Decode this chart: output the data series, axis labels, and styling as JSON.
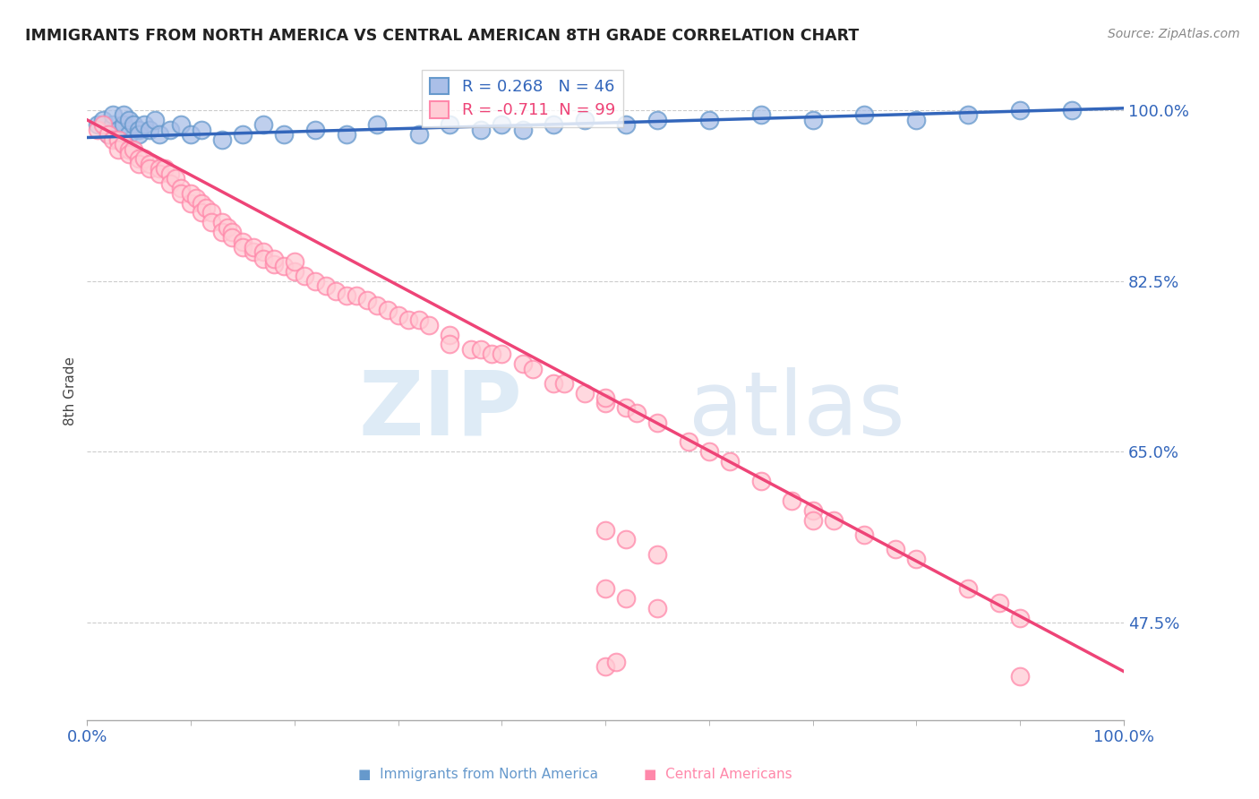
{
  "title": "IMMIGRANTS FROM NORTH AMERICA VS CENTRAL AMERICAN 8TH GRADE CORRELATION CHART",
  "source": "Source: ZipAtlas.com",
  "ylabel": "8th Grade",
  "legend_blue_label": "Immigrants from North America",
  "legend_pink_label": "Central Americans",
  "blue_R": 0.268,
  "blue_N": 46,
  "pink_R": -0.711,
  "pink_N": 99,
  "xlim": [
    0.0,
    1.0
  ],
  "ylim": [
    0.375,
    1.05
  ],
  "yticks": [
    0.475,
    0.65,
    0.825,
    1.0
  ],
  "ytick_labels": [
    "47.5%",
    "65.0%",
    "82.5%",
    "100.0%"
  ],
  "xtick_labels": [
    "0.0%",
    "100.0%"
  ],
  "background_color": "#ffffff",
  "blue_dot_face": "#aabfe8",
  "blue_dot_edge": "#6699cc",
  "pink_dot_face": "#ffccd5",
  "pink_dot_edge": "#ff88aa",
  "blue_line_color": "#3366bb",
  "pink_line_color": "#ee4477",
  "grid_color": "#cccccc",
  "axis_color": "#3366bb",
  "title_color": "#222222",
  "source_color": "#888888",
  "blue_trend_y0": 0.972,
  "blue_trend_y1": 1.002,
  "pink_trend_y0": 0.99,
  "pink_trend_y1": 0.425,
  "blue_points_x": [
    0.01,
    0.015,
    0.02,
    0.025,
    0.025,
    0.03,
    0.03,
    0.035,
    0.035,
    0.04,
    0.04,
    0.045,
    0.05,
    0.05,
    0.055,
    0.06,
    0.065,
    0.07,
    0.08,
    0.09,
    0.1,
    0.11,
    0.13,
    0.15,
    0.17,
    0.19,
    0.22,
    0.25,
    0.28,
    0.32,
    0.35,
    0.38,
    0.4,
    0.42,
    0.45,
    0.48,
    0.52,
    0.55,
    0.6,
    0.65,
    0.7,
    0.75,
    0.8,
    0.85,
    0.9,
    0.95
  ],
  "blue_points_y": [
    0.985,
    0.99,
    0.975,
    0.985,
    0.995,
    0.98,
    0.97,
    0.985,
    0.995,
    0.975,
    0.99,
    0.985,
    0.98,
    0.975,
    0.985,
    0.98,
    0.99,
    0.975,
    0.98,
    0.985,
    0.975,
    0.98,
    0.97,
    0.975,
    0.985,
    0.975,
    0.98,
    0.975,
    0.985,
    0.975,
    0.985,
    0.98,
    0.985,
    0.98,
    0.985,
    0.99,
    0.985,
    0.99,
    0.99,
    0.995,
    0.99,
    0.995,
    0.99,
    0.995,
    1.0,
    1.0
  ],
  "pink_points_x": [
    0.01,
    0.015,
    0.02,
    0.025,
    0.03,
    0.03,
    0.035,
    0.04,
    0.04,
    0.045,
    0.05,
    0.05,
    0.055,
    0.06,
    0.06,
    0.07,
    0.07,
    0.075,
    0.08,
    0.08,
    0.085,
    0.09,
    0.09,
    0.1,
    0.1,
    0.105,
    0.11,
    0.11,
    0.115,
    0.12,
    0.12,
    0.13,
    0.13,
    0.135,
    0.14,
    0.14,
    0.15,
    0.15,
    0.16,
    0.16,
    0.17,
    0.17,
    0.18,
    0.18,
    0.19,
    0.2,
    0.2,
    0.21,
    0.22,
    0.23,
    0.24,
    0.25,
    0.26,
    0.27,
    0.28,
    0.29,
    0.3,
    0.31,
    0.32,
    0.33,
    0.35,
    0.35,
    0.37,
    0.38,
    0.39,
    0.4,
    0.42,
    0.43,
    0.45,
    0.46,
    0.48,
    0.5,
    0.5,
    0.52,
    0.53,
    0.55,
    0.58,
    0.6,
    0.62,
    0.65,
    0.68,
    0.7,
    0.72,
    0.75,
    0.78,
    0.8,
    0.85,
    0.88,
    0.9,
    0.5,
    0.52,
    0.55,
    0.7,
    0.5,
    0.52,
    0.55,
    0.5,
    0.51,
    0.9
  ],
  "pink_points_y": [
    0.98,
    0.985,
    0.975,
    0.97,
    0.97,
    0.96,
    0.965,
    0.96,
    0.955,
    0.96,
    0.95,
    0.945,
    0.95,
    0.945,
    0.94,
    0.94,
    0.935,
    0.94,
    0.935,
    0.925,
    0.93,
    0.92,
    0.915,
    0.905,
    0.915,
    0.91,
    0.905,
    0.895,
    0.9,
    0.895,
    0.885,
    0.885,
    0.875,
    0.88,
    0.875,
    0.87,
    0.865,
    0.86,
    0.855,
    0.86,
    0.855,
    0.848,
    0.842,
    0.848,
    0.84,
    0.835,
    0.845,
    0.83,
    0.825,
    0.82,
    0.815,
    0.81,
    0.81,
    0.805,
    0.8,
    0.795,
    0.79,
    0.785,
    0.785,
    0.78,
    0.77,
    0.76,
    0.755,
    0.755,
    0.75,
    0.75,
    0.74,
    0.735,
    0.72,
    0.72,
    0.71,
    0.7,
    0.705,
    0.695,
    0.69,
    0.68,
    0.66,
    0.65,
    0.64,
    0.62,
    0.6,
    0.59,
    0.58,
    0.565,
    0.55,
    0.54,
    0.51,
    0.495,
    0.48,
    0.57,
    0.56,
    0.545,
    0.58,
    0.51,
    0.5,
    0.49,
    0.43,
    0.435,
    0.42
  ]
}
